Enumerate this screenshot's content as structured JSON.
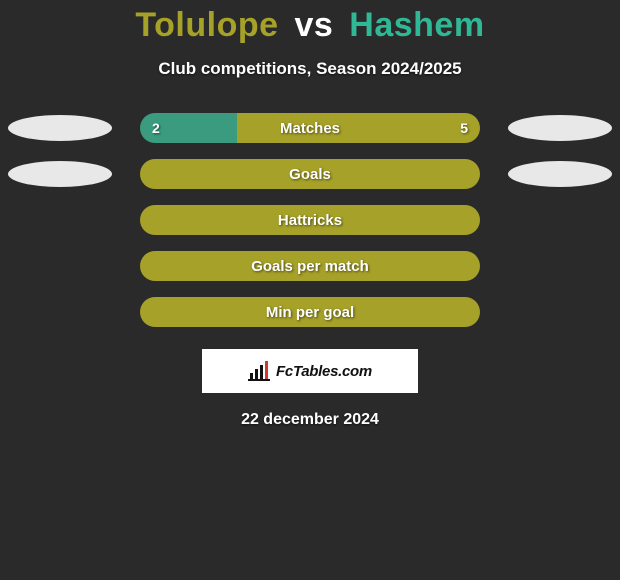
{
  "title": {
    "player1": "Tolulope",
    "vs": "vs",
    "player2": "Hashem",
    "color_player1": "#a6a128",
    "color_vs": "#ffffff",
    "color_player2": "#2fb895"
  },
  "subtitle": "Club competitions, Season 2024/2025",
  "accent_color": "#a6a128",
  "alt_color": "#3a9b7f",
  "background_color": "#2a2a2a",
  "ellipse_color": "#e8e8e8",
  "rows": [
    {
      "label": "Matches",
      "left_value": "2",
      "right_value": "5",
      "left_pct": 28.57,
      "right_pct": 71.43,
      "show_ellipses": true,
      "left_fill_color": "#3a9b7f",
      "right_fill_color": "#a6a128"
    },
    {
      "label": "Goals",
      "left_value": "",
      "right_value": "",
      "left_pct": 0,
      "right_pct": 100,
      "show_ellipses": true,
      "left_fill_color": "#a6a128",
      "right_fill_color": "#a6a128"
    },
    {
      "label": "Hattricks",
      "left_value": "",
      "right_value": "",
      "left_pct": 0,
      "right_pct": 100,
      "show_ellipses": false,
      "left_fill_color": "#a6a128",
      "right_fill_color": "#a6a128"
    },
    {
      "label": "Goals per match",
      "left_value": "",
      "right_value": "",
      "left_pct": 0,
      "right_pct": 100,
      "show_ellipses": false,
      "left_fill_color": "#a6a128",
      "right_fill_color": "#a6a128"
    },
    {
      "label": "Min per goal",
      "left_value": "",
      "right_value": "",
      "left_pct": 0,
      "right_pct": 100,
      "show_ellipses": false,
      "left_fill_color": "#a6a128",
      "right_fill_color": "#a6a128"
    }
  ],
  "badge": {
    "text": "FcTables.com",
    "icon_color": "#111111",
    "icon_accent": "#d03a2b"
  },
  "date": "22 december 2024"
}
